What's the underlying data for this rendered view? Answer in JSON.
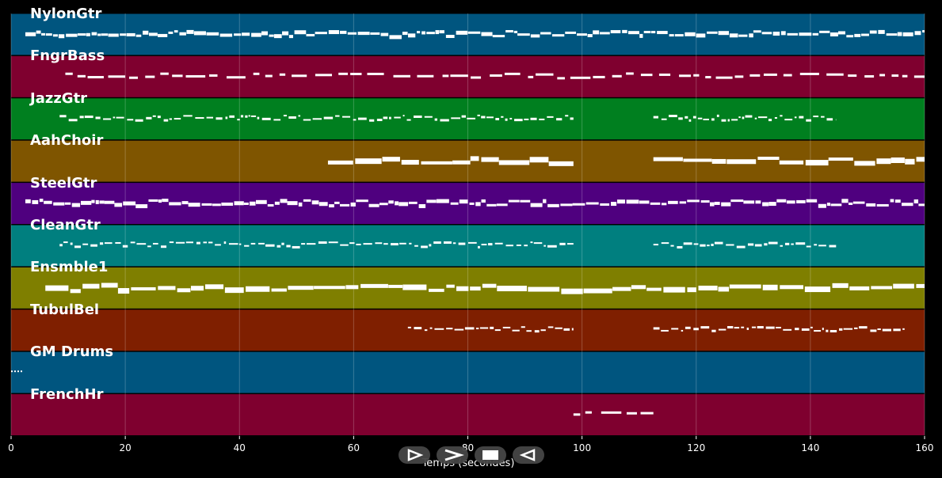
{
  "chart_data": {
    "type": "piano-roll",
    "xlabel": "Temps (secondes)",
    "xlim": [
      0,
      160
    ],
    "xticks": [
      0,
      20,
      40,
      60,
      80,
      100,
      120,
      140,
      160
    ],
    "grid": true,
    "tracks": [
      {
        "name": "NylonGtr",
        "color": "#00557f",
        "segments": [
          [
            2.5,
            160
          ]
        ],
        "style": "dense"
      },
      {
        "name": "FngrBass",
        "color": "#7f002f",
        "segments": [
          [
            9.5,
            160
          ]
        ],
        "style": "sparse"
      },
      {
        "name": "JazzGtr",
        "color": "#007f1f",
        "segments": [
          [
            8.5,
            98.5
          ],
          [
            112.5,
            144.5
          ]
        ],
        "style": "thin"
      },
      {
        "name": "AahChoir",
        "color": "#7f5500",
        "segments": [
          [
            55.5,
            98.5
          ],
          [
            112.5,
            160
          ]
        ],
        "style": "thick"
      },
      {
        "name": "SteelGtr",
        "color": "#4f007f",
        "segments": [
          [
            2.5,
            160
          ]
        ],
        "style": "dense"
      },
      {
        "name": "CleanGtr",
        "color": "#007f7f",
        "segments": [
          [
            8.5,
            98.5
          ],
          [
            112.5,
            144.5
          ]
        ],
        "style": "thin"
      },
      {
        "name": "Ensmble1",
        "color": "#7f7f00",
        "segments": [
          [
            6,
            160
          ]
        ],
        "style": "thick"
      },
      {
        "name": "TubulBel",
        "color": "#7f1f00",
        "segments": [
          [
            69.5,
            98.5
          ],
          [
            112.5,
            156.5
          ]
        ],
        "style": "thin"
      },
      {
        "name": "GM Drums",
        "color": "#00557f",
        "segments": [
          [
            0,
            2
          ]
        ],
        "style": "dots"
      },
      {
        "name": "FrenchHr",
        "color": "#7f002f",
        "segments": [
          [
            98.5,
            112.5
          ]
        ],
        "style": "sparse"
      }
    ]
  },
  "controls": {
    "play_icon": "play-icon",
    "forward_icon": "forward-icon",
    "stop_icon": "stop-icon",
    "rewind_icon": "rewind-icon"
  }
}
